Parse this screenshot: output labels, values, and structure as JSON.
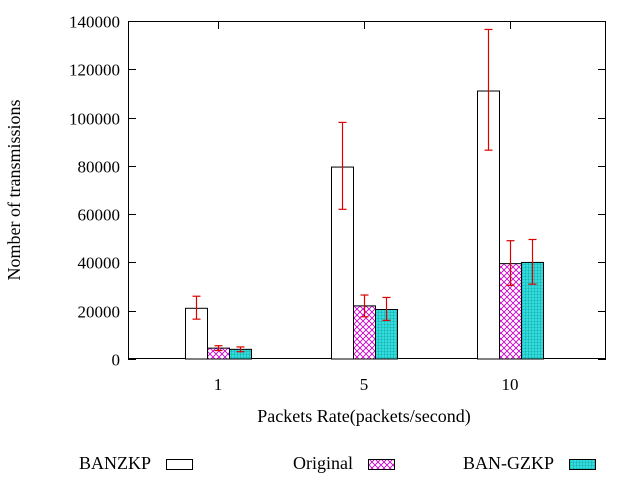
{
  "chart_data": {
    "type": "bar",
    "title": "",
    "xlabel": "Packets Rate(packets/second)",
    "ylabel": "Nomber of transmissions",
    "categories": [
      "1",
      "5",
      "10"
    ],
    "ylim": [
      0,
      140000
    ],
    "yticks": [
      0,
      20000,
      40000,
      60000,
      80000,
      100000,
      120000,
      140000
    ],
    "ytick_labels": [
      "0",
      "20000",
      "40000",
      "60000",
      "80000",
      "100000",
      "120000",
      "140000"
    ],
    "grid": false,
    "legend_position": "bottom",
    "series": [
      {
        "name": "BANZKP",
        "pattern": "blank",
        "color": "#000000",
        "values": [
          21000,
          79500,
          111000
        ],
        "errors": [
          [
            16500,
            26000
          ],
          [
            62000,
            98000
          ],
          [
            86500,
            136500
          ]
        ]
      },
      {
        "name": "Original",
        "pattern": "crosshatch",
        "color": "#cc00cc",
        "values": [
          4500,
          22000,
          39500
        ],
        "errors": [
          [
            3500,
            5500
          ],
          [
            17500,
            26500
          ],
          [
            30500,
            49000
          ]
        ]
      },
      {
        "name": "BAN-GZKP",
        "pattern": "grid",
        "color": "#009999",
        "values": [
          4000,
          20500,
          40000
        ],
        "errors": [
          [
            3000,
            5000
          ],
          [
            16000,
            25500
          ],
          [
            31000,
            49500
          ]
        ]
      }
    ],
    "error_bar_color": "#dd0000"
  }
}
